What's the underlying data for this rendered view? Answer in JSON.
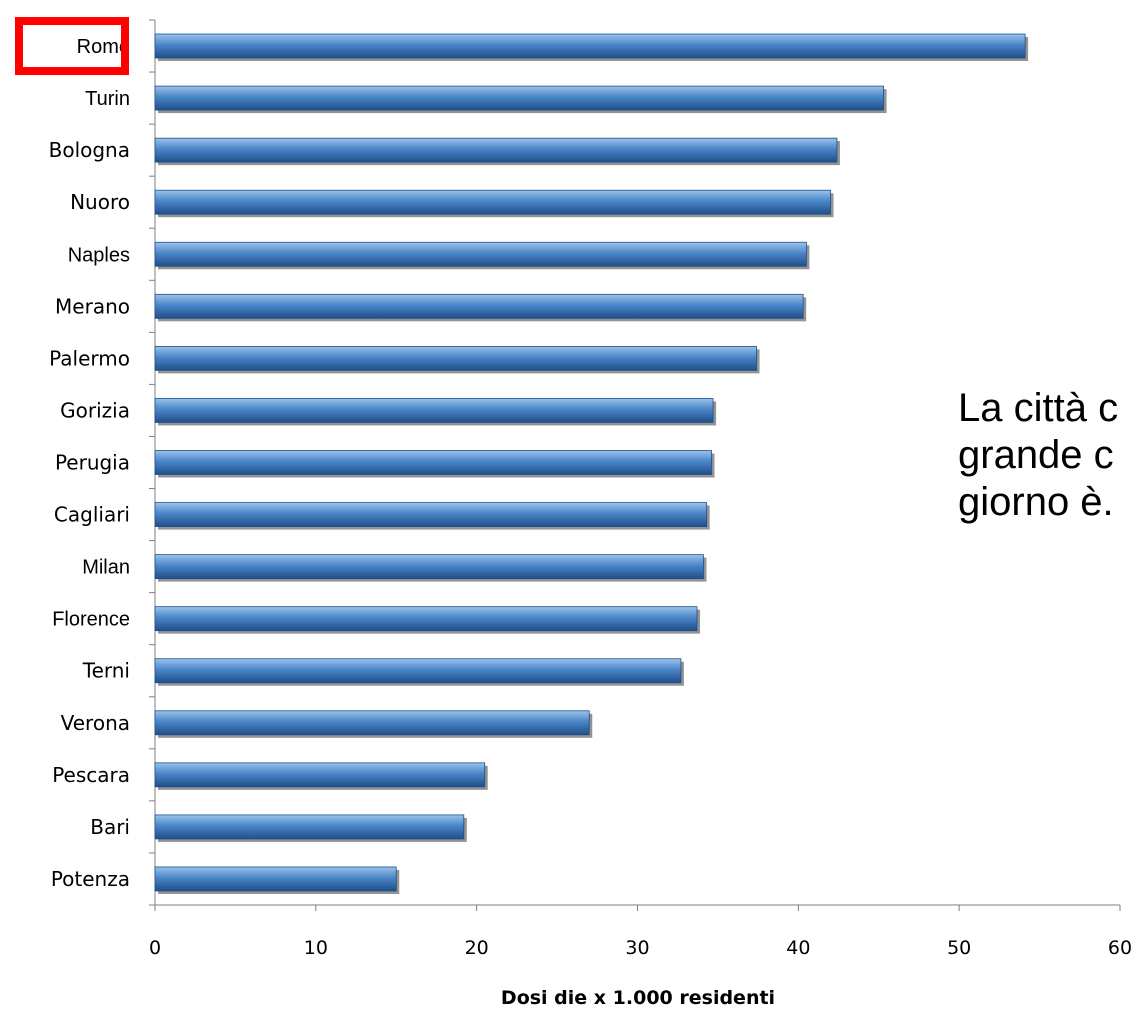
{
  "chart_data": {
    "type": "bar",
    "orientation": "horizontal",
    "categories": [
      "Rome",
      "Turin",
      "Bologna",
      "Nuoro",
      "Naples",
      "Merano",
      "Palermo",
      "Gorizia",
      "Perugia",
      "Cagliari",
      "Milan",
      "Florence",
      "Terni",
      "Verona",
      "Pescara",
      "Bari",
      "Potenza"
    ],
    "values": [
      54.1,
      45.3,
      42.4,
      42.0,
      40.5,
      40.3,
      37.4,
      34.7,
      34.6,
      34.3,
      34.1,
      33.7,
      32.7,
      27.0,
      20.5,
      19.2,
      15.0
    ],
    "xlabel": "Dosi die x 1.000 residenti",
    "xlim": [
      0,
      60
    ],
    "xticks": [
      "0",
      "10",
      "20",
      "30",
      "40",
      "50",
      "60"
    ],
    "highlight": {
      "category": "Rome",
      "color": "#ff0000"
    },
    "colors": {
      "bar": "#4a86c8",
      "bar_light": "#9cc3ec",
      "bar_dark": "#1f4f8a",
      "axis": "#7f7f7f"
    },
    "grid": false,
    "legend": "none"
  },
  "annotation": {
    "lines": [
      "La città c",
      "grande c",
      "giorno è."
    ]
  }
}
